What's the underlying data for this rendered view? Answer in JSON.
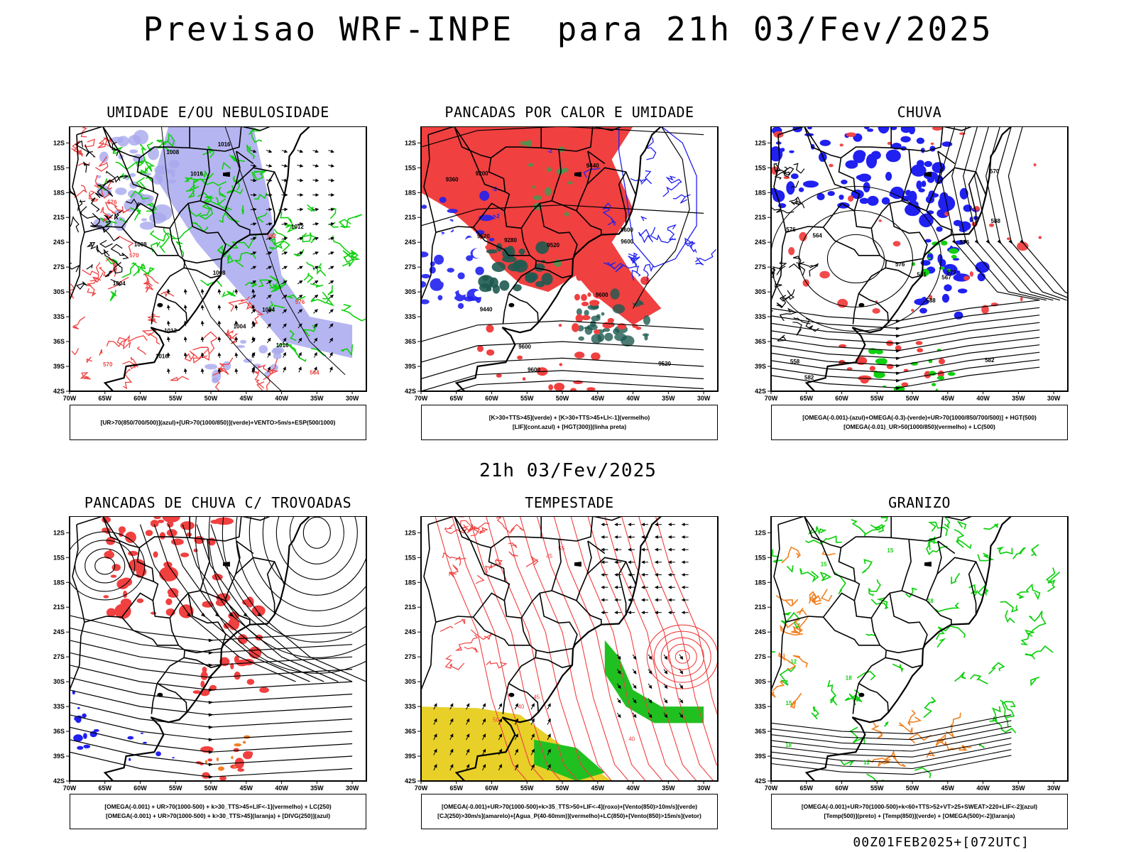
{
  "title": "Previsao WRF-INPE  para 21h 03/Fev/2025",
  "mid_title": "21h 03/Fev/2025",
  "run_stamp": "00Z01FEB2025+[072UTC]",
  "lat_ticks": [
    "12S",
    "15S",
    "18S",
    "21S",
    "24S",
    "27S",
    "30S",
    "33S",
    "36S",
    "39S",
    "42S"
  ],
  "lon_ticks": [
    "70W",
    "65W",
    "60W",
    "55W",
    "50W",
    "45W",
    "40W",
    "35W",
    "30W"
  ],
  "colors": {
    "red": "#f04040",
    "blue": "#2020f0",
    "green": "#10d010",
    "lavender": "#a8a8ee",
    "darkteal": "#1e5a50",
    "yellow": "#e8d028",
    "orange": "#f08020",
    "black": "#000000"
  },
  "panels": [
    {
      "id": "umidade",
      "title": "UMIDADE E/OU NEBULOSIDADE",
      "legend": [
        "[UR>70(850/700/500)](azul)+[UR>70(1000/850)](verde)+VENTO>5m/s+ESP(500/1000)"
      ],
      "labels": [
        "1012",
        "1012",
        "1008",
        "1008",
        "1008",
        "1004",
        "1004",
        "1004",
        "1016",
        "1016",
        "1016",
        "1016",
        "570",
        "570",
        "576",
        "576",
        "564",
        "582"
      ]
    },
    {
      "id": "pancadas",
      "title": "PANCADAS POR CALOR E UMIDADE",
      "legend": [
        "[K>30+TTS>45](verde) + [K>30+TTS>45+LI<-1](vermelho)",
        "[LIF](cont.azul) + [HGT(300)](linha preta)"
      ],
      "labels": [
        "9600",
        "9600",
        "9600",
        "9600",
        "9600",
        "9520",
        "9520",
        "9520",
        "9440",
        "9440",
        "9360",
        "9280",
        "9200",
        "-2",
        "-2",
        "-2",
        "-2"
      ]
    },
    {
      "id": "chuva",
      "title": "CHUVA",
      "legend": [
        "[OMEGA(-0.001)-(azul)+OMEGA(-0.3)-(verde)+UR>70(1000/850/700/500)] + HGT(500)",
        "[OMEGA(-0.01)_UR>50(1000/850)(vermelho) + LC(500)"
      ],
      "labels": [
        "588",
        "588",
        "582",
        "582",
        "576",
        "576",
        "576",
        "573",
        "570",
        "567",
        "564",
        "561",
        "558"
      ]
    },
    {
      "id": "trovoadas",
      "title": "PANCADAS DE CHUVA C/ TROVOADAS",
      "legend": [
        "[OMEGA(-0.001) + UR>70(1000-500) + k>30_TTS>45+LIF<-1](vermelho) + LC(250)",
        "[OMEGA(-0.001) + UR>70(1000-500) + k>30_TTS>45](laranja) + [DIVG(250)](azul)"
      ],
      "labels": []
    },
    {
      "id": "tempestade",
      "title": "TEMPESTADE",
      "legend": [
        "[OMEGA(-0.001)+UR>70(1000-500)+k>35_TTS>50+LIF<-4](roxo)+[Vento(850)>10m/s](verde)",
        "[CJ(250)>30m/s](amarelo)+[Agua_P(40-60mm)](vermelho)+LC(850)+[Vento(850)>15m/s](vetor)"
      ],
      "labels": [
        "40",
        "45",
        "50",
        "55",
        "45",
        "40"
      ]
    },
    {
      "id": "granizo",
      "title": "GRANIZO",
      "legend": [
        "[OMEGA(-0.001)+UR>70(1000-500)+k<60+TTS>52+VT>25+SWEAT>220+LIF<-2](azul)",
        "[Temp(500)](preto) + [Temp(850)](verde) + [OMEGA(500)<-2](laranja)"
      ],
      "labels": [
        "18",
        "18",
        "18",
        "15",
        "15",
        "15",
        "12",
        "-12"
      ]
    }
  ]
}
